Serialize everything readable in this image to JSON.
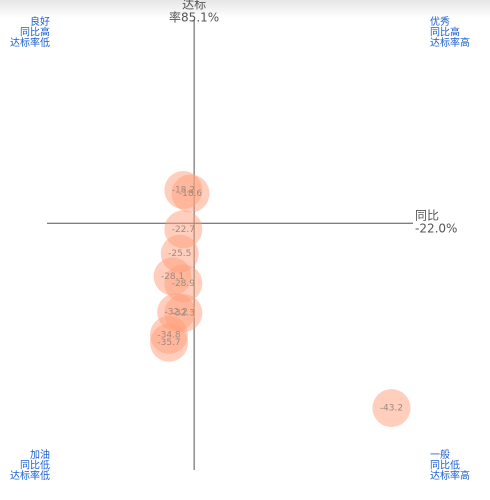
{
  "chart_data": {
    "type": "scatter",
    "x_ref_title": "达标",
    "x_ref": {
      "value": 85.1,
      "label": "率85.1%"
    },
    "y_ref_title": "同比",
    "y_ref": {
      "value": -22.0,
      "label": "-22.0%"
    },
    "xlim": [
      81,
      91.2
    ],
    "ylim": [
      -50.3,
      1.3
    ],
    "color": "#ff9e7a",
    "quadrants": [
      {
        "corner": "top-left",
        "lines": [
          "良好",
          "同比高",
          "达标率低"
        ]
      },
      {
        "corner": "top-right",
        "lines": [
          "优秀",
          "同比高",
          "达标率高"
        ]
      },
      {
        "corner": "bottom-left",
        "lines": [
          "加油",
          "同比低",
          "达标率低"
        ]
      },
      {
        "corner": "bottom-right",
        "lines": [
          "一般",
          "同比低",
          "达标率高"
        ]
      }
    ],
    "x": [
      84.8,
      85.0,
      84.8,
      84.7,
      84.5,
      84.8,
      84.6,
      84.8,
      84.4,
      84.4,
      90.6
    ],
    "values": [
      -18.2,
      -18.6,
      -22.7,
      -25.5,
      -28.1,
      -28.9,
      -32.2,
      -32.3,
      -34.8,
      -35.7,
      -43.2
    ]
  }
}
